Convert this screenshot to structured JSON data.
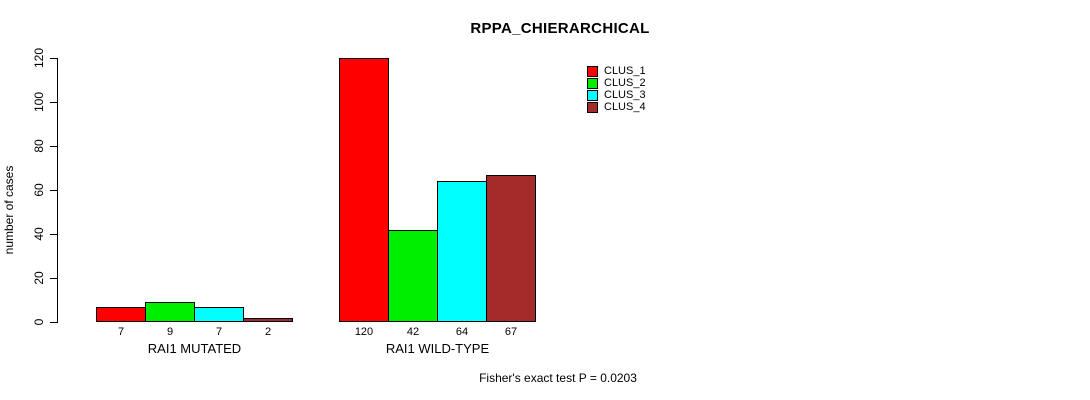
{
  "chart_data": {
    "type": "bar",
    "title": "RPPA_CHIERARCHICAL",
    "xlabel": "",
    "ylabel": "number of cases",
    "ylim": [
      0,
      120
    ],
    "yticks": [
      0,
      20,
      40,
      60,
      80,
      100,
      120
    ],
    "grid": false,
    "legend_position": "top-right",
    "categories": [
      "RAI1 MUTATED",
      "RAI1 WILD-TYPE"
    ],
    "series": [
      {
        "name": "CLUS_1",
        "color": "#ff0000",
        "values": [
          7,
          120
        ]
      },
      {
        "name": "CLUS_2",
        "color": "#00ee00",
        "values": [
          9,
          42
        ]
      },
      {
        "name": "CLUS_3",
        "color": "#00ffff",
        "values": [
          7,
          64
        ]
      },
      {
        "name": "CLUS_4",
        "color": "#a52a2a",
        "values": [
          2,
          67
        ]
      }
    ],
    "bar_value_labels_shown": true,
    "annotation": "Fisher's exact test P = 0.0203"
  }
}
